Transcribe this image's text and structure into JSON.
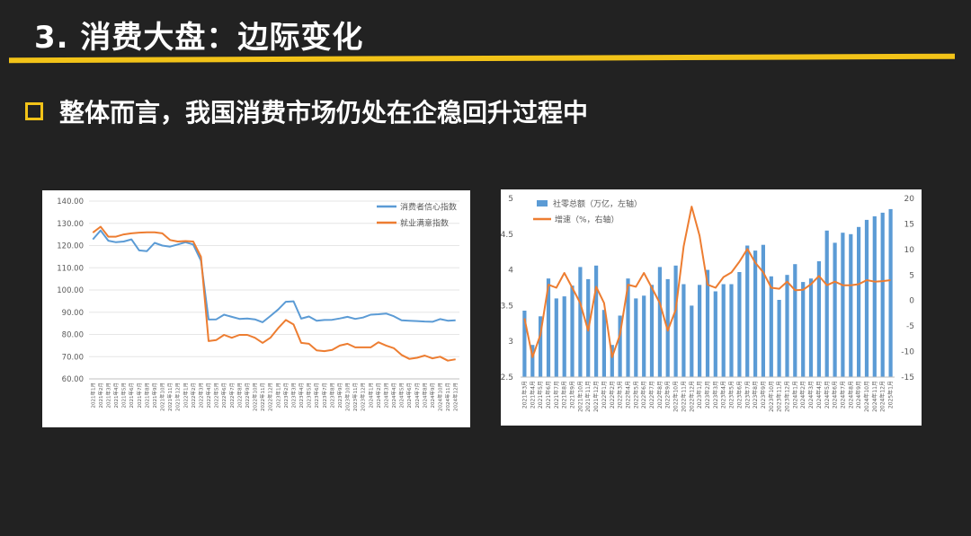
{
  "header": {
    "title": "3. 消费大盘：边际变化"
  },
  "subtitle": {
    "text": "整体而言，我国消费市场仍处在企稳回升过程中"
  },
  "colors": {
    "accent": "#f2c318",
    "series_blue": "#5b9bd5",
    "series_orange": "#ed7d31"
  },
  "chart_data": [
    {
      "type": "line",
      "title": "",
      "xlabel": "",
      "ylabel": "",
      "ylim": [
        60,
        140
      ],
      "yticks": [
        "60.00",
        "70.00",
        "80.00",
        "90.00",
        "100.00",
        "110.00",
        "120.00",
        "130.00",
        "140.00"
      ],
      "legend_position": "top-right",
      "x": [
        "2021年1月",
        "2021年2月",
        "2021年3月",
        "2021年4月",
        "2021年5月",
        "2021年6月",
        "2021年7月",
        "2021年8月",
        "2021年9月",
        "2021年10月",
        "2021年11月",
        "2021年12月",
        "2022年1月",
        "2022年2月",
        "2022年3月",
        "2022年4月",
        "2022年5月",
        "2022年6月",
        "2022年7月",
        "2022年8月",
        "2022年9月",
        "2022年10月",
        "2022年11月",
        "2022年12月",
        "2023年1月",
        "2023年2月",
        "2023年3月",
        "2023年4月",
        "2023年5月",
        "2023年6月",
        "2023年7月",
        "2023年8月",
        "2023年9月",
        "2023年10月",
        "2023年11月",
        "2023年12月",
        "2024年1月",
        "2024年2月",
        "2024年3月",
        "2024年4月",
        "2024年5月",
        "2024年6月",
        "2024年7月",
        "2024年8月",
        "2024年9月",
        "2024年10月",
        "2024年11月",
        "2024年12月"
      ],
      "series": [
        {
          "name": "消费者信心指数",
          "color": "#5b9bd5",
          "values": [
            122.8,
            126.8,
            122.2,
            121.5,
            121.8,
            122.8,
            117.8,
            117.5,
            121.2,
            120.0,
            119.5,
            120.5,
            121.5,
            120.5,
            113.2,
            86.7,
            86.8,
            88.9,
            87.9,
            87.0,
            87.2,
            86.8,
            85.5,
            88.3,
            91.2,
            94.7,
            94.9,
            87.1,
            88.1,
            86.2,
            86.5,
            86.6,
            87.2,
            87.9,
            87.0,
            87.6,
            88.9,
            89.1,
            89.4,
            88.2,
            86.4,
            86.2,
            86.0,
            85.8,
            85.7,
            86.9,
            86.2,
            86.4
          ]
        },
        {
          "name": "就业满意指数",
          "color": "#ed7d31",
          "values": [
            125.8,
            128.5,
            124.0,
            124.0,
            125.0,
            125.5,
            125.8,
            126.0,
            126.0,
            125.5,
            122.5,
            121.8,
            122.0,
            121.8,
            115.0,
            77.0,
            77.5,
            79.8,
            78.5,
            79.8,
            79.8,
            78.5,
            76.2,
            78.5,
            82.8,
            86.5,
            84.5,
            76.2,
            75.8,
            72.8,
            72.5,
            73.0,
            75.0,
            75.8,
            74.2,
            74.2,
            74.2,
            76.5,
            75.0,
            73.8,
            70.8,
            69.0,
            69.5,
            70.5,
            69.2,
            70.0,
            68.2,
            68.8
          ]
        }
      ]
    },
    {
      "type": "bar",
      "title": "",
      "xlabel": "",
      "ylabel": "",
      "ylim": [
        2.5,
        5
      ],
      "yticks": [
        "2.5",
        "3",
        "3.5",
        "4",
        "4.5",
        "5"
      ],
      "y2lim": [
        -15,
        20
      ],
      "y2ticks": [
        "-15",
        "-10",
        "-5",
        "0",
        "5",
        "10",
        "15",
        "20"
      ],
      "legend_position": "top-left",
      "x": [
        "2021年3月",
        "2021年4月",
        "2021年5月",
        "2021年6月",
        "2021年7月",
        "2021年8月",
        "2021年9月",
        "2021年10月",
        "2021年11月",
        "2021年12月",
        "2022年1月",
        "2022年2月",
        "2022年3月",
        "2022年4月",
        "2022年5月",
        "2022年6月",
        "2022年7月",
        "2022年8月",
        "2022年9月",
        "2022年10月",
        "2022年11月",
        "2022年12月",
        "2023年1月",
        "2023年2月",
        "2023年3月",
        "2023年4月",
        "2023年5月",
        "2023年6月",
        "2023年7月",
        "2023年8月",
        "2023年9月",
        "2023年10月",
        "2023年11月",
        "2023年12月",
        "2024年1月",
        "2024年2月",
        "2024年3月",
        "2024年4月",
        "2024年5月",
        "2024年6月",
        "2024年7月",
        "2024年8月",
        "2024年9月",
        "2024年10月",
        "2024年11月",
        "2024年12月",
        "2025年1月"
      ],
      "series": [
        {
          "name": "社零总额（万亿，左轴）",
          "color": "#5b9bd5",
          "values": [
            3.43,
            2.95,
            3.35,
            3.88,
            3.6,
            3.63,
            3.78,
            4.04,
            3.87,
            4.06,
            3.44,
            2.95,
            3.36,
            3.88,
            3.6,
            3.64,
            3.79,
            4.04,
            3.87,
            4.06,
            3.8,
            3.5,
            3.79,
            4.0,
            3.7,
            3.8,
            3.8,
            3.97,
            4.34,
            4.27,
            4.35,
            3.91,
            3.58,
            3.93,
            4.08,
            3.83,
            3.88,
            4.12,
            4.55,
            4.38,
            4.52,
            4.5,
            4.6,
            4.7,
            4.75,
            4.8,
            4.85
          ]
        },
        {
          "name": "增速（%，右轴）",
          "color": "#ed7d31",
          "values": [
            -3.5,
            -11.1,
            -6.7,
            3.1,
            2.5,
            5.4,
            2.5,
            -0.5,
            -5.9,
            2.7,
            -0.5,
            -11.1,
            -6.7,
            3.1,
            2.7,
            5.4,
            2.5,
            -0.5,
            -5.9,
            -1.8,
            10.6,
            18.4,
            12.7,
            3.1,
            2.5,
            4.6,
            5.5,
            7.6,
            10.1,
            7.4,
            5.5,
            2.5,
            2.3,
            3.7,
            2.0,
            2.1,
            3.2,
            4.8,
            3.0,
            3.7,
            3.0,
            3.0,
            3.2,
            4.0,
            3.7,
            3.8,
            4.0
          ]
        }
      ]
    }
  ]
}
